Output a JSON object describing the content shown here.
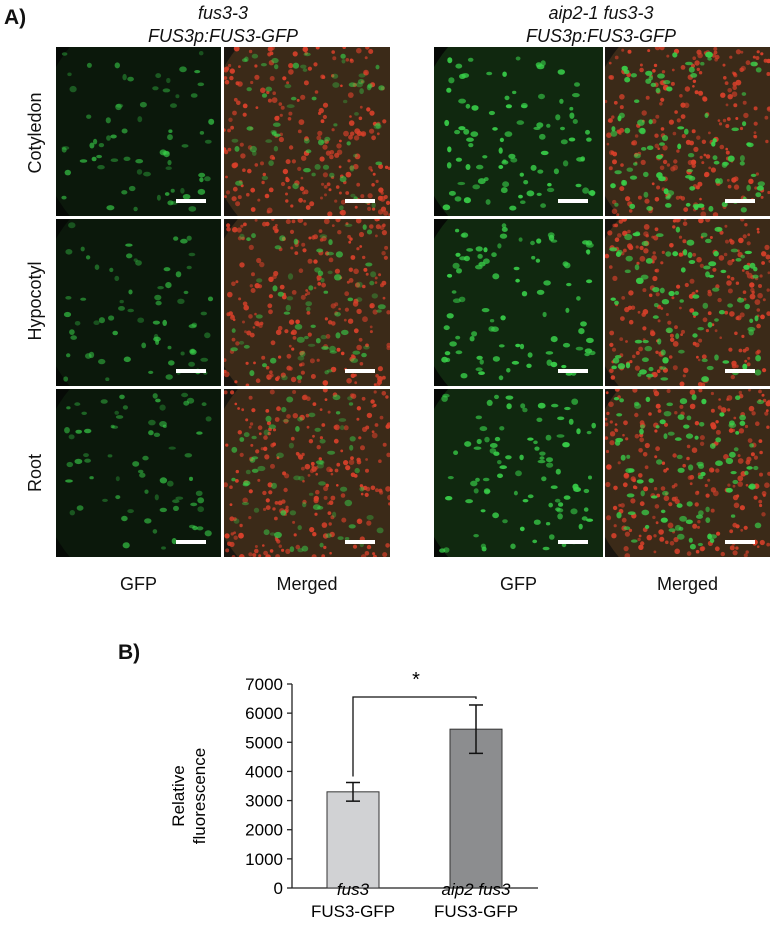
{
  "panel_a": {
    "label": "A)",
    "groups": [
      {
        "title_line1": "fus3-3",
        "title_line2": "FUS3p:FUS3-GFP"
      },
      {
        "title_line1": "aip2-1 fus3-3",
        "title_line2": "FUS3p:FUS3-GFP"
      }
    ],
    "rows": [
      "Cotyledon",
      "Hypocotyl",
      "Root"
    ],
    "columns": [
      "GFP",
      "Merged",
      "GFP",
      "Merged"
    ]
  },
  "panel_b": {
    "label": "B)"
  },
  "colors": {
    "gfp": "#39d14a",
    "red_nuclei": "#d8402a",
    "bar_1": "#d1d2d4",
    "bar_2": "#8c8d8f"
  },
  "chart_data": {
    "type": "bar",
    "ylabel_line1": "Relative",
    "ylabel_line2": "fluorescence",
    "ylim": [
      0,
      7000
    ],
    "yticks": [
      0,
      1000,
      2000,
      3000,
      4000,
      5000,
      6000,
      7000
    ],
    "categories": [
      {
        "line1": "fus3",
        "line2": "FUS3-GFP"
      },
      {
        "line1": "aip2 fus3",
        "line2": "FUS3-GFP"
      }
    ],
    "values": [
      3300,
      5450
    ],
    "errors": [
      320,
      830
    ],
    "significance": "*"
  }
}
